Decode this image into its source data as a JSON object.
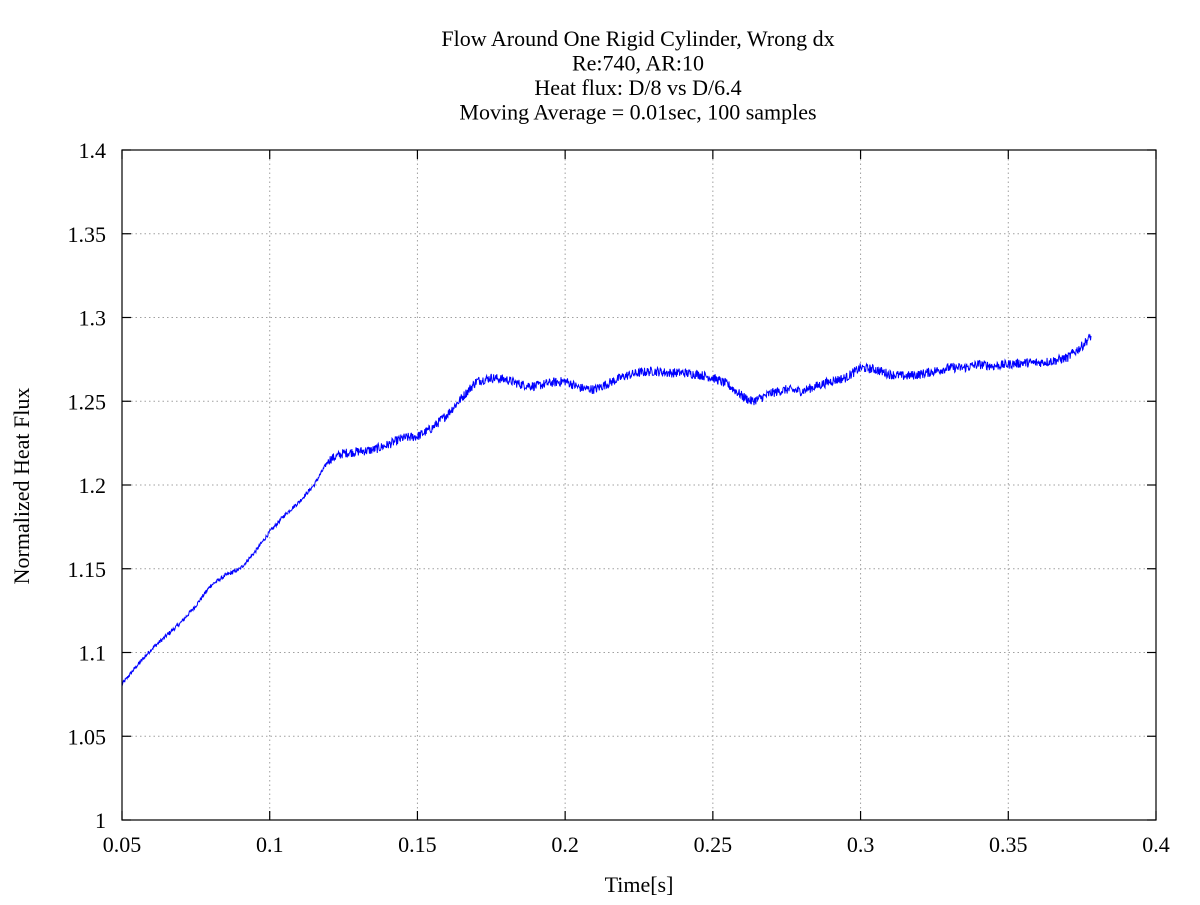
{
  "chart_data": {
    "type": "line",
    "title_lines": [
      "Flow Around One Rigid Cylinder, Wrong dx",
      "Re:740, AR:10",
      "Heat flux: D/8 vs D/6.4",
      "Moving Average = 0.01sec, 100 samples"
    ],
    "xlabel": "Time[s]",
    "ylabel": "Normalized Heat Flux",
    "xlim": [
      0.05,
      0.4
    ],
    "ylim": [
      1.0,
      1.4
    ],
    "x_ticks": [
      0.05,
      0.1,
      0.15,
      0.2,
      0.25,
      0.3,
      0.35,
      0.4
    ],
    "x_tick_labels": [
      "0.05",
      "0.1",
      "0.15",
      "0.2",
      "0.25",
      "0.3",
      "0.35",
      "0.4"
    ],
    "y_ticks": [
      1.0,
      1.05,
      1.1,
      1.15,
      1.2,
      1.25,
      1.3,
      1.35,
      1.4
    ],
    "y_tick_labels": [
      "1",
      "1.05",
      "1.1",
      "1.15",
      "1.2",
      "1.25",
      "1.3",
      "1.35",
      "1.4"
    ],
    "grid": true,
    "legend": "none",
    "series": [
      {
        "color": "#0000ff",
        "x": [
          0.05,
          0.055,
          0.06,
          0.065,
          0.07,
          0.075,
          0.08,
          0.085,
          0.09,
          0.095,
          0.1,
          0.105,
          0.11,
          0.115,
          0.12,
          0.125,
          0.13,
          0.135,
          0.14,
          0.145,
          0.15,
          0.155,
          0.16,
          0.165,
          0.17,
          0.175,
          0.18,
          0.185,
          0.19,
          0.195,
          0.2,
          0.205,
          0.21,
          0.215,
          0.22,
          0.225,
          0.23,
          0.235,
          0.24,
          0.245,
          0.25,
          0.255,
          0.26,
          0.263,
          0.265,
          0.27,
          0.275,
          0.28,
          0.285,
          0.29,
          0.295,
          0.3,
          0.305,
          0.31,
          0.315,
          0.32,
          0.325,
          0.33,
          0.335,
          0.34,
          0.345,
          0.35,
          0.355,
          0.36,
          0.365,
          0.37,
          0.375,
          0.378
        ],
        "y": [
          1.081,
          1.092,
          1.102,
          1.11,
          1.118,
          1.128,
          1.14,
          1.146,
          1.15,
          1.16,
          1.172,
          1.182,
          1.19,
          1.2,
          1.215,
          1.219,
          1.22,
          1.221,
          1.224,
          1.228,
          1.229,
          1.234,
          1.242,
          1.252,
          1.262,
          1.264,
          1.263,
          1.26,
          1.259,
          1.261,
          1.262,
          1.258,
          1.257,
          1.261,
          1.265,
          1.267,
          1.268,
          1.267,
          1.267,
          1.266,
          1.264,
          1.26,
          1.253,
          1.25,
          1.251,
          1.255,
          1.257,
          1.256,
          1.259,
          1.262,
          1.264,
          1.27,
          1.269,
          1.266,
          1.265,
          1.266,
          1.268,
          1.27,
          1.27,
          1.272,
          1.271,
          1.272,
          1.273,
          1.273,
          1.274,
          1.276,
          1.283,
          1.289
        ]
      }
    ]
  }
}
